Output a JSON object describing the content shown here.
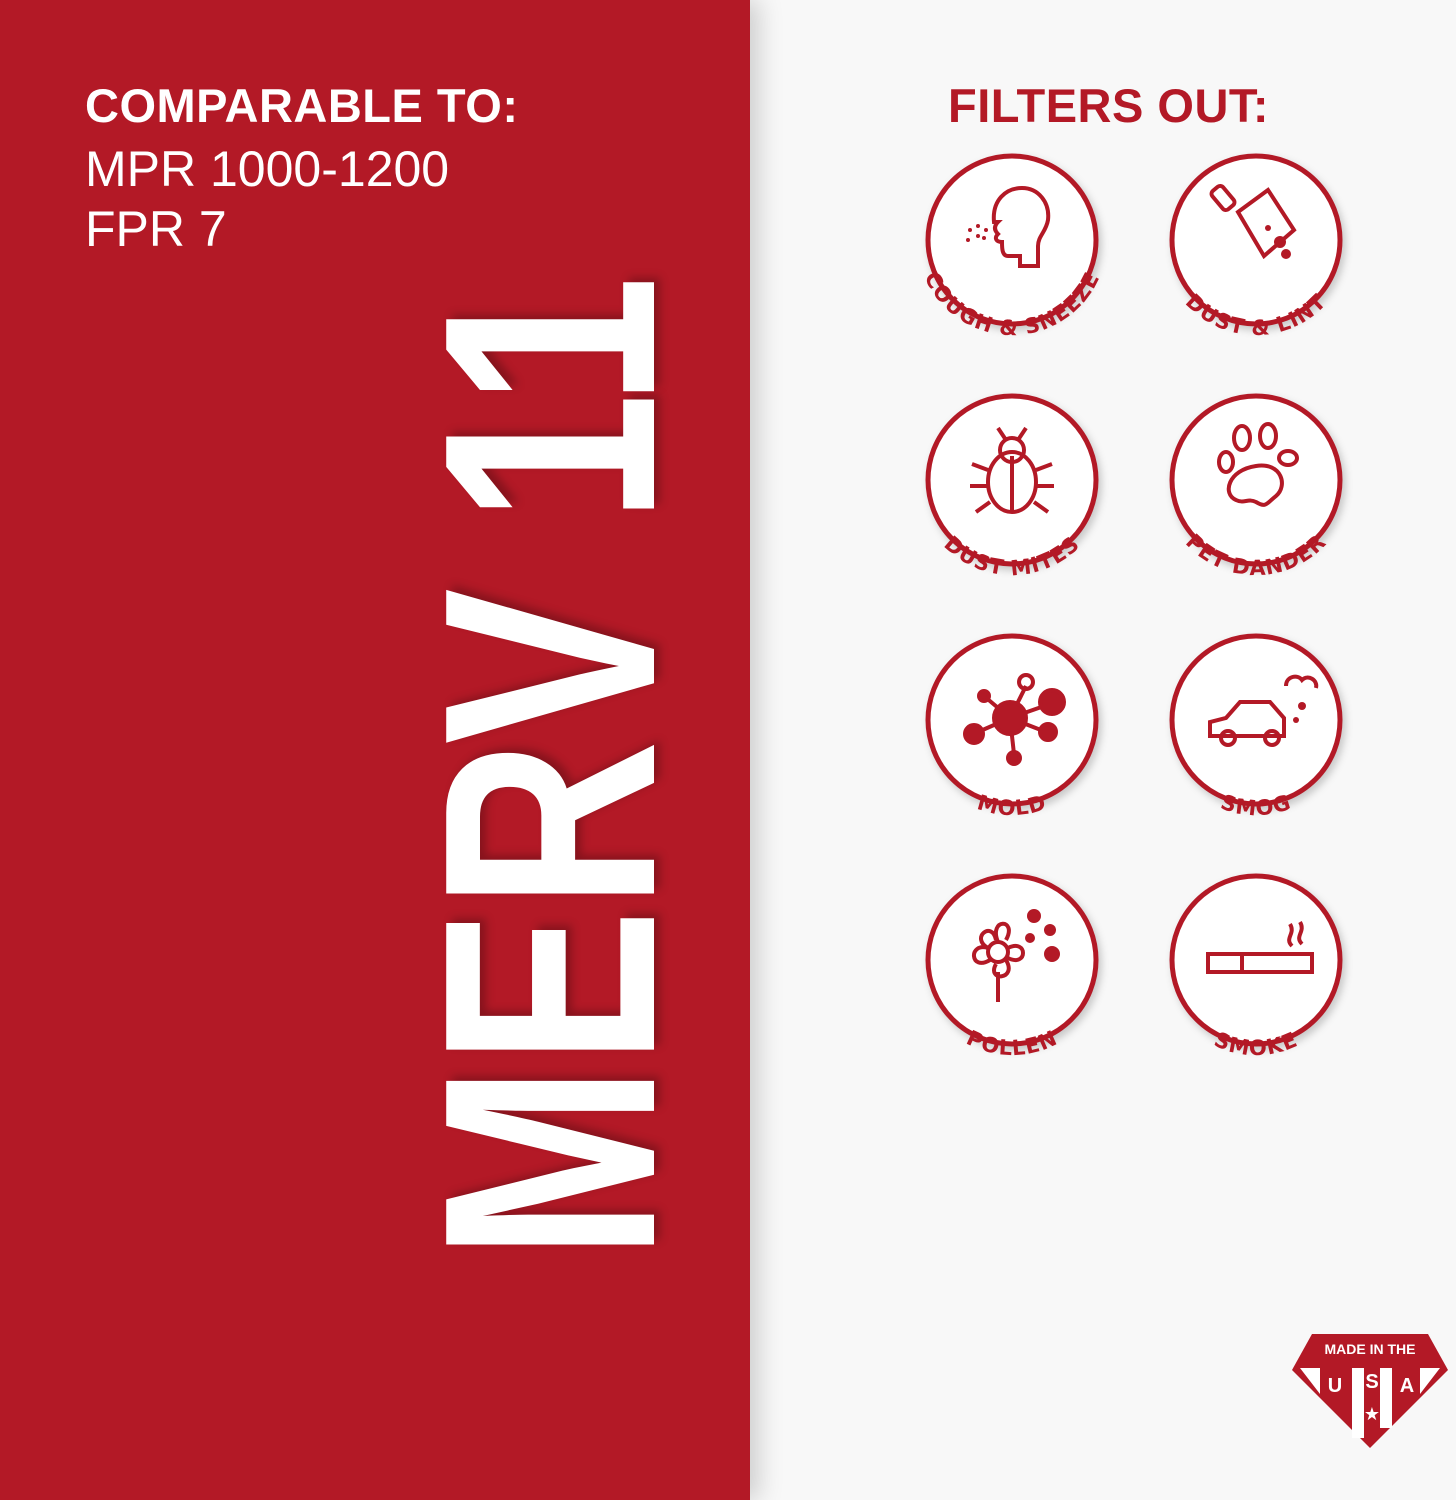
{
  "comparable": {
    "title": "COMPARABLE TO:",
    "lines": [
      "MPR 1000-1200",
      "FPR 7"
    ]
  },
  "rating": "MERV 11",
  "filters": {
    "title": "FILTERS OUT:",
    "items": [
      {
        "label": "COUGH & SNEEZE",
        "icon": "head-sneeze-icon"
      },
      {
        "label": "DUST & LINT",
        "icon": "dustpan-icon"
      },
      {
        "label": "DUST MITES",
        "icon": "bug-icon"
      },
      {
        "label": "PET DANDER",
        "icon": "paw-icon"
      },
      {
        "label": "MOLD",
        "icon": "mold-spore-icon"
      },
      {
        "label": "SMOG",
        "icon": "car-smog-icon"
      },
      {
        "label": "POLLEN",
        "icon": "flower-icon"
      },
      {
        "label": "SMOKE",
        "icon": "cigarette-icon"
      }
    ]
  },
  "badge": {
    "text": "MADE IN THE",
    "letters": [
      "U",
      "S",
      "A"
    ]
  },
  "colors": {
    "brand_red": "#b31926",
    "background": "#f8f8f8",
    "text_light": "#ffffff"
  }
}
